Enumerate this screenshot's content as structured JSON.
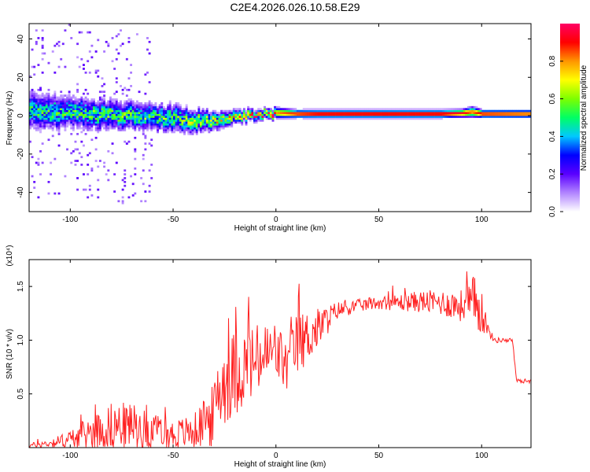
{
  "title": "C2E4.2026.026.10.58.E29",
  "chart_data": [
    {
      "type": "heatmap",
      "name": "spectrogram",
      "xlabel": "Height of straight line (km)",
      "ylabel": "Frequency (Hz)",
      "xlim": [
        -120,
        124
      ],
      "ylim": [
        -50,
        48
      ],
      "xticks": [
        -100,
        -50,
        0,
        50,
        100
      ],
      "yticks": [
        -40,
        -20,
        0,
        20,
        40
      ],
      "colorbar": {
        "label": "Normalized spectral amplitude",
        "range": [
          0,
          1
        ],
        "ticks": [
          0.0,
          0.2,
          0.4,
          0.6,
          0.8
        ],
        "tick_labels": [
          "0.0",
          "0.2",
          "0.4",
          "0.6",
          "0.8"
        ],
        "colors": [
          "#ffffff",
          "#b184ff",
          "#5a00ff",
          "#0000ff",
          "#00c8ff",
          "#00ff64",
          "#7dff00",
          "#ffff00",
          "#ff9600",
          "#ff0000",
          "#ff0064"
        ]
      },
      "ridge": {
        "x": [
          -120,
          -100,
          -80,
          -60,
          -50,
          -40,
          -30,
          -20,
          -10,
          0,
          10,
          20,
          40,
          60,
          80,
          90,
          95,
          100,
          124
        ],
        "center_hz": [
          2,
          1,
          0,
          -1,
          -2,
          -3,
          -3,
          -1,
          0,
          1,
          0.5,
          0.5,
          0.5,
          0.5,
          0.5,
          0.8,
          1.5,
          0.5,
          0.5
        ],
        "spread_hz": [
          7,
          6,
          5.5,
          5,
          5,
          4.5,
          3.5,
          2.5,
          2,
          2,
          1.5,
          1.5,
          1.5,
          1.5,
          1.5,
          1.5,
          2,
          1.5,
          1.5
        ],
        "amplitude": [
          0.45,
          0.45,
          0.48,
          0.5,
          0.52,
          0.55,
          0.6,
          0.7,
          0.75,
          0.8,
          0.95,
          1,
          1,
          1,
          1,
          0.95,
          0.85,
          0.95,
          0.9
        ]
      }
    },
    {
      "type": "line",
      "name": "snr",
      "xlabel": "Height of straight line (km)",
      "ylabel": "SNR (10 * v/v)",
      "yscale_label": "(x10⁴)",
      "xlim": [
        -120,
        124
      ],
      "ylim": [
        0,
        1.75
      ],
      "xticks": [
        -100,
        -50,
        0,
        50,
        100
      ],
      "yticks": [
        0.5,
        1.0,
        1.5
      ],
      "ytick_labels": [
        "0.5",
        "1.0",
        "1.5"
      ],
      "color": "#ff2020",
      "series": [
        {
          "name": "SNR",
          "x": [
            -120,
            -110,
            -100,
            -90,
            -80,
            -70,
            -60,
            -50,
            -40,
            -30,
            -28,
            -20,
            -10,
            0,
            5,
            10,
            20,
            30,
            40,
            50,
            60,
            70,
            80,
            90,
            95,
            100,
            103,
            106,
            110,
            115,
            117,
            124
          ],
          "mean": [
            0.02,
            0.04,
            0.08,
            0.14,
            0.2,
            0.2,
            0.15,
            0.12,
            0.15,
            0.3,
            0.55,
            0.7,
            0.8,
            0.9,
            0.75,
            0.95,
            1.1,
            1.28,
            1.32,
            1.35,
            1.35,
            1.36,
            1.35,
            1.32,
            1.32,
            1.3,
            1.1,
            1.0,
            1.0,
            1.0,
            0.62,
            0.62
          ],
          "noise": [
            0.02,
            0.04,
            0.08,
            0.16,
            0.22,
            0.22,
            0.16,
            0.14,
            0.16,
            0.3,
            0.4,
            0.4,
            0.35,
            0.3,
            0.25,
            0.3,
            0.2,
            0.08,
            0.06,
            0.06,
            0.08,
            0.1,
            0.12,
            0.15,
            0.3,
            0.25,
            0.05,
            0.03,
            0.02,
            0.02,
            0.02,
            0.02
          ]
        }
      ]
    }
  ]
}
